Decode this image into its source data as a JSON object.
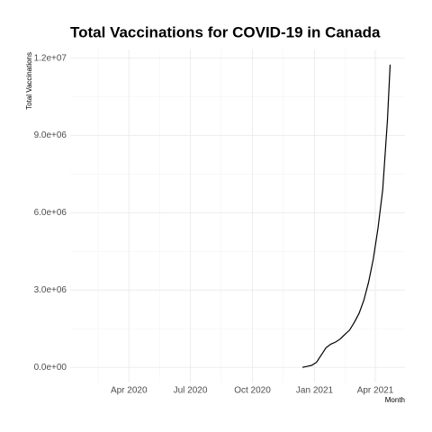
{
  "chart_data": {
    "type": "line",
    "title": "Total Vaccinations for COVID-19 in Canada",
    "x_label": "Month",
    "y_label": "Total Vaccinations",
    "x": [
      "2020-12-14",
      "2020-12-21",
      "2020-12-28",
      "2021-01-04",
      "2021-01-11",
      "2021-01-18",
      "2021-01-25",
      "2021-02-01",
      "2021-02-08",
      "2021-02-15",
      "2021-02-22",
      "2021-03-01",
      "2021-03-08",
      "2021-03-15",
      "2021-03-22",
      "2021-03-29",
      "2021-04-05",
      "2021-04-12",
      "2021-04-19",
      "2021-04-23"
    ],
    "series": [
      {
        "color": "#000000",
        "values": [
          0,
          40000,
          80000,
          200000,
          480000,
          760000,
          900000,
          980000,
          1100000,
          1280000,
          1450000,
          1750000,
          2100000,
          2600000,
          3300000,
          4200000,
          5400000,
          6900000,
          9600000,
          11750000
        ]
      }
    ],
    "xlim": [
      "2020-01-05",
      "2021-05-15"
    ],
    "xticks": [
      {
        "value": "2020-04-01",
        "label": "Apr 2020"
      },
      {
        "value": "2020-07-01",
        "label": "Jul 2020"
      },
      {
        "value": "2020-10-01",
        "label": "Oct 2020"
      },
      {
        "value": "2021-01-01",
        "label": "Jan 2021"
      },
      {
        "value": "2021-04-01",
        "label": "Apr 2021"
      }
    ],
    "ylim": [
      -587500,
      12337500
    ],
    "yticks": [
      {
        "value": 0,
        "label": "0.0e+00"
      },
      {
        "value": 3000000,
        "label": "3.0e+06"
      },
      {
        "value": 6000000,
        "label": "6.0e+06"
      },
      {
        "value": 9000000,
        "label": "9.0e+06"
      },
      {
        "value": 12000000,
        "label": "1.2e+07"
      }
    ],
    "grid": true
  }
}
